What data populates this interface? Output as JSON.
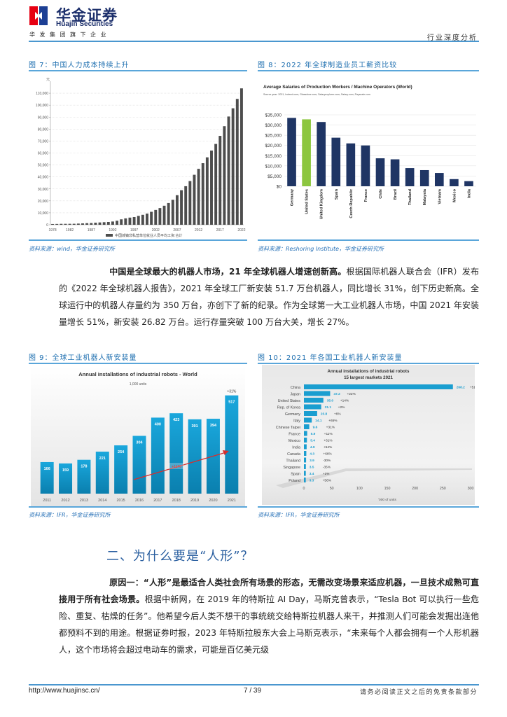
{
  "header": {
    "logo_cn": "华金证券",
    "logo_en": "Huajin Securities",
    "logo_sub": "华发集团旗下企业",
    "report_type": "行业深度分析"
  },
  "figures": {
    "fig7": {
      "title": "图 7：中国人力成本持续上升",
      "source": "资料来源：wind，华金证券研究所"
    },
    "fig8": {
      "title": "图 8：2022 年全球制造业员工薪资比较",
      "source": "资料来源：Reshoring Institute，华金证券研究所"
    },
    "fig9": {
      "title": "图 9：全球工业机器人新安装量",
      "source": "资料来源：IFR，华金证券研究所"
    },
    "fig10": {
      "title": "图 10：2021 年各国工业机器人新安装量",
      "source": "资料来源：IFR，华金证券研究所"
    }
  },
  "paragraph1": {
    "bold": "中国是全球最大的机器人市场，21 年全球机器人增速创新高。",
    "text": "根据国际机器人联合会（IFR）发布的《2022 年全球机器人报告》，2021 年全球工厂新安装 51.7 万台机器人，同比增长 31%，创下历史新高。全球运行中的机器人存量约为 350 万台，亦创下了新的纪录。作为全球第一大工业机器人市场，中国 2021 年安装量增长 51%，新安装 26.82 万台。运行存量突破 100 万台大关，增长 27%。"
  },
  "section": {
    "title": "二、为什么要是“人形”？"
  },
  "paragraph2": {
    "bold": "原因一：“人形”是最适合人类社会所有场景的形态，无需改变场景来适应机器，一旦技术成熟可直接用于所有社会场景。",
    "text": "根据中新网，在 2019 年的特斯拉 AI Day，马斯克曾表示，“Tesla Bot 可以执行一些危险、重复、枯燥的任务”。他希望今后人类不想干的事统统交给特斯拉机器人来干，并推测人们可能会发掘出连他都预料不到的用途。根据证券时报，2023 年特斯拉股东大会上马斯克表示，“未来每个人都会拥有一个人形机器人，这个市场将会超过电动车的需求，可能是百亿美元级"
  },
  "footer": {
    "url": "http://www.huajinsc.cn/",
    "page": "7 / 39",
    "disclaimer": "请务必阅读正文之后的免责条款部分"
  },
  "chart_data": [
    {
      "id": "fig7",
      "type": "bar",
      "title": "中国人力成本持续上升",
      "legend": [
        "中国城镇非私营单位就业人员平均工资:合计"
      ],
      "ylabel": "元",
      "ylim": [
        0,
        120000
      ],
      "yticks": [
        0,
        10000,
        20000,
        30000,
        40000,
        50000,
        60000,
        70000,
        80000,
        90000,
        100000,
        110000
      ],
      "xtick_labels": [
        "1978",
        "1982",
        "1987",
        "1992",
        "1997",
        "2002",
        "2007",
        "2012",
        "2017",
        "2022"
      ],
      "x": [
        1978,
        1979,
        1980,
        1981,
        1982,
        1983,
        1984,
        1985,
        1986,
        1987,
        1988,
        1989,
        1990,
        1991,
        1992,
        1993,
        1994,
        1995,
        1996,
        1997,
        1998,
        1999,
        2000,
        2001,
        2002,
        2003,
        2004,
        2005,
        2006,
        2007,
        2008,
        2009,
        2010,
        2011,
        2012,
        2013,
        2014,
        2015,
        2016,
        2017,
        2018,
        2019,
        2020,
        2021,
        2022
      ],
      "values": [
        615,
        668,
        762,
        772,
        798,
        826,
        974,
        1148,
        1329,
        1459,
        1747,
        1935,
        2140,
        2340,
        2711,
        3371,
        4538,
        5348,
        5980,
        6444,
        7446,
        8319,
        9333,
        10834,
        12373,
        13969,
        15920,
        18200,
        20856,
        24721,
        28898,
        32244,
        36539,
        41799,
        46769,
        51483,
        56360,
        62029,
        67569,
        74318,
        82413,
        90501,
        97379,
        105196,
        114029
      ],
      "color": "#4d4d4d"
    },
    {
      "id": "fig8",
      "type": "bar",
      "title": "Average Salaries of Production Workers / Machine Operators (World)",
      "subtitle": "Source year: 2021, Indeed.com; Glassdoor.com; Salaryexplorer.com; Salary.com; Payscale.com",
      "categories": [
        "Germany",
        "United States",
        "United Kingdom",
        "Spain",
        "Czech Republic",
        "France",
        "Chile",
        "Brazil",
        "Thailand",
        "Malaysia",
        "Vietnam",
        "Mexico",
        "India"
      ],
      "values": [
        33500,
        32800,
        31500,
        23800,
        21000,
        20000,
        13700,
        13200,
        8900,
        7900,
        6500,
        3500,
        2500
      ],
      "ylim": [
        0,
        35000
      ],
      "yticks": [
        "$0",
        "$5,000",
        "$10,000",
        "$15,000",
        "$20,000",
        "$25,000",
        "$30,000",
        "$35,000"
      ],
      "colors": {
        "default": "#1f3564",
        "highlight": "#8cc63f"
      },
      "highlight": "United States"
    },
    {
      "id": "fig9",
      "type": "bar",
      "title": "Annual installations of industrial robots - World",
      "subtitle": "1,000 units",
      "categories": [
        "2011",
        "2012",
        "2013",
        "2014",
        "2015",
        "2016",
        "2017",
        "2018",
        "2019",
        "2020",
        "2021"
      ],
      "values": [
        166,
        159,
        178,
        221,
        254,
        304,
        400,
        423,
        391,
        394,
        517
      ],
      "annotations": [
        "+31%",
        "+11%"
      ],
      "color": "#1a9ed0"
    },
    {
      "id": "fig10",
      "type": "bar",
      "orientation": "horizontal",
      "title": "Annual installations of industrial robots 15 largest markets 2021",
      "xlabel": "'000 of units",
      "xlim": [
        0,
        300
      ],
      "xticks": [
        0,
        50,
        100,
        150,
        200,
        250,
        300
      ],
      "categories": [
        "China",
        "Japan",
        "United States",
        "Rep. of Korea",
        "Germany",
        "Italy",
        "Chinese Taipei",
        "France",
        "Mexico",
        "India",
        "Canada",
        "Thailand",
        "Singapore",
        "Spain",
        "Poland"
      ],
      "values": [
        268.2,
        47.2,
        35.0,
        31.1,
        23.8,
        14.1,
        9.6,
        5.9,
        5.4,
        4.9,
        4.3,
        3.9,
        3.5,
        3.4,
        3.3
      ],
      "growth": [
        "+51%",
        "+22%",
        "+14%",
        "+2%",
        "+6%",
        "+65%",
        "+31%",
        "+11%",
        "+61%",
        "+54%",
        "+66%",
        "-30%",
        "-35%",
        "+1%",
        "+56%"
      ],
      "color": "#1a9ed0"
    }
  ]
}
